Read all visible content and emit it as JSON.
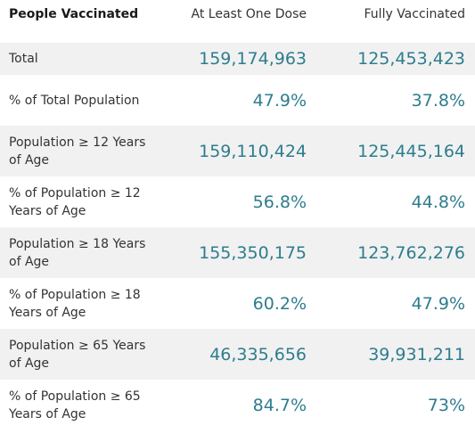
{
  "table": {
    "headers": [
      "People Vaccinated",
      "At Least One Dose",
      "Fully Vaccinated"
    ],
    "rows": [
      {
        "label": "Total",
        "at_least_one_dose": "159,174,963",
        "fully_vaccinated": "125,453,423"
      },
      {
        "label": "% of Total Population",
        "at_least_one_dose": "47.9%",
        "fully_vaccinated": "37.8%"
      },
      {
        "label": "Population ≥ 12 Years of Age",
        "at_least_one_dose": "159,110,424",
        "fully_vaccinated": "125,445,164"
      },
      {
        "label": "% of Population ≥ 12 Years of Age",
        "at_least_one_dose": "56.8%",
        "fully_vaccinated": "44.8%"
      },
      {
        "label": "Population ≥ 18 Years of Age",
        "at_least_one_dose": "155,350,175",
        "fully_vaccinated": "123,762,276"
      },
      {
        "label": "% of Population ≥ 18 Years of Age",
        "at_least_one_dose": "60.2%",
        "fully_vaccinated": "47.9%"
      },
      {
        "label": "Population ≥ 65 Years of Age",
        "at_least_one_dose": "46,335,656",
        "fully_vaccinated": "39,931,211"
      },
      {
        "label": "% of Population ≥ 65 Years of Age",
        "at_least_one_dose": "84.7%",
        "fully_vaccinated": "73%"
      }
    ]
  },
  "colors": {
    "value_text": "#2d7d8e",
    "row_shade": "#f1f1f1",
    "label_text": "#333333"
  }
}
